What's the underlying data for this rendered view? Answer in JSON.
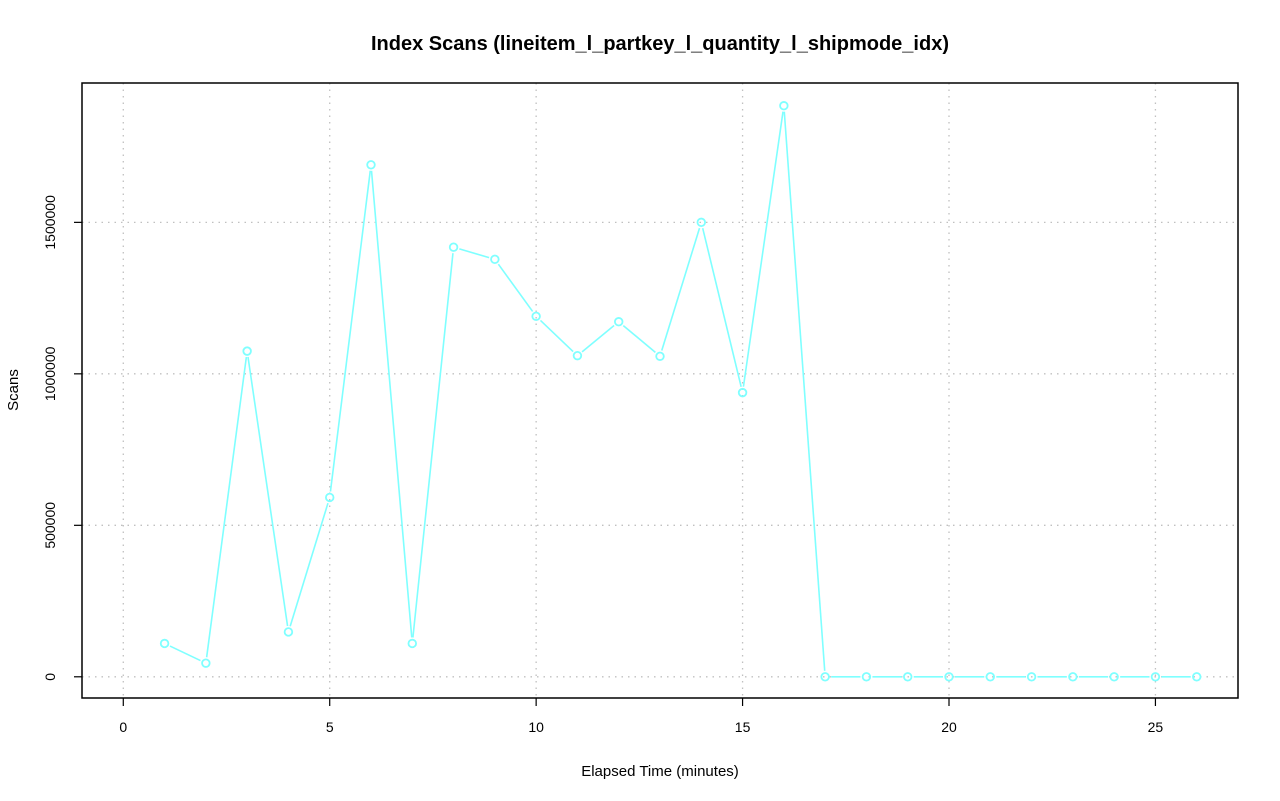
{
  "chart_data": {
    "type": "line",
    "title": "Index Scans (lineitem_l_partkey_l_quantity_l_shipmode_idx)",
    "xlabel": "Elapsed Time (minutes)",
    "ylabel": "Scans",
    "xlim": [
      -1,
      27
    ],
    "ylim": [
      -70000,
      1960000
    ],
    "xticks": [
      0,
      5,
      10,
      15,
      20,
      25
    ],
    "yticks": [
      0,
      500000,
      1000000,
      1500000
    ],
    "grid": true,
    "series": [
      {
        "color": "#7fffff",
        "marker": "open-circle",
        "x": [
          1,
          2,
          3,
          4,
          5,
          6,
          7,
          8,
          9,
          10,
          11,
          12,
          13,
          14,
          15,
          16,
          17,
          18,
          19,
          20,
          21,
          22,
          23,
          24,
          25,
          26
        ],
        "values": [
          110000,
          45000,
          1075000,
          148000,
          592000,
          1690000,
          110000,
          1418000,
          1378000,
          1190000,
          1060000,
          1172000,
          1058000,
          1500000,
          938000,
          1885000,
          0,
          0,
          0,
          0,
          0,
          0,
          0,
          0,
          0,
          0
        ]
      }
    ]
  }
}
